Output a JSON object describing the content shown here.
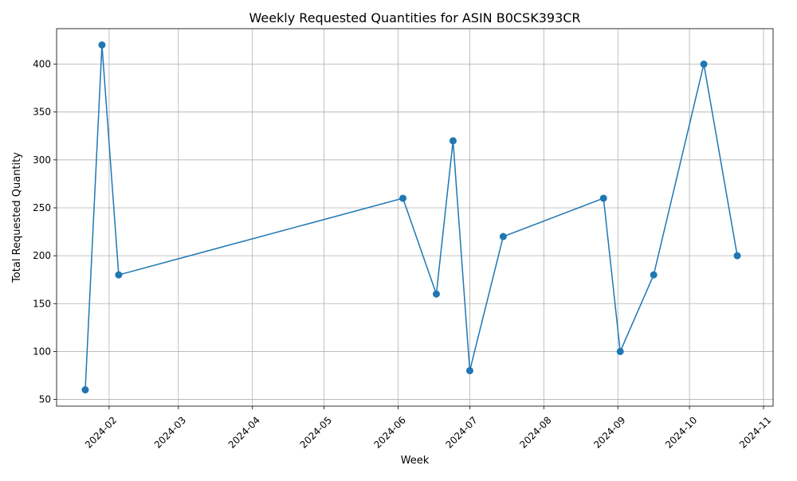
{
  "chart_data": {
    "type": "line",
    "title": "Weekly Requested Quantities for ASIN B0CSK393CR",
    "xlabel": "Week",
    "ylabel": "Total Requested Quantity",
    "x_axis_type": "date",
    "xlim": [
      "2024-01-10",
      "2024-11-05"
    ],
    "ylim": [
      43,
      437
    ],
    "x_ticks": [
      "2024-02-01",
      "2024-03-01",
      "2024-04-01",
      "2024-05-01",
      "2024-06-01",
      "2024-07-01",
      "2024-08-01",
      "2024-09-01",
      "2024-10-01",
      "2024-11-01"
    ],
    "x_tick_labels": [
      "2024-02",
      "2024-03",
      "2024-04",
      "2024-05",
      "2024-06",
      "2024-07",
      "2024-08",
      "2024-09",
      "2024-10",
      "2024-11"
    ],
    "x_tick_rotation_deg": 45,
    "y_ticks": [
      50,
      100,
      150,
      200,
      250,
      300,
      350,
      400
    ],
    "y_tick_labels": [
      "50",
      "100",
      "150",
      "200",
      "250",
      "300",
      "350",
      "400"
    ],
    "grid": true,
    "marker": "circle",
    "series": [
      {
        "color": "#1f77b4",
        "x": [
          "2024-01-22",
          "2024-01-29",
          "2024-02-05",
          "2024-06-03",
          "2024-06-17",
          "2024-06-24",
          "2024-07-01",
          "2024-07-15",
          "2024-08-26",
          "2024-09-02",
          "2024-09-16",
          "2024-10-07",
          "2024-10-21"
        ],
        "values": [
          60,
          420,
          180,
          260,
          160,
          320,
          80,
          220,
          260,
          100,
          180,
          400,
          200
        ]
      }
    ]
  }
}
